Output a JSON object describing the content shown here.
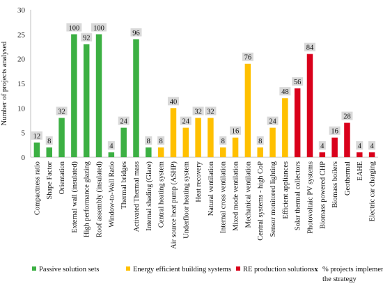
{
  "chart_data": {
    "type": "bar",
    "ylabel": "Number of projects analysed",
    "ylim": [
      0,
      30
    ],
    "yticks": [
      "0",
      "5",
      "10",
      "15",
      "20",
      "25",
      "30"
    ],
    "grid": false,
    "categories": [
      "Compactness ratio",
      "Shape Factor",
      "Orientation",
      "External wall (insulated)",
      "High performance glazing",
      "Roof assembly (insulated)",
      "Window-to-Wall Ratio",
      "Thermal bridges",
      "Activated Thermal mass",
      "Internal shading (Glare)",
      "Central heating system",
      "Air source heat pump (ASHP)",
      "Underfloor heating system",
      "Heat recovery",
      "Natural ventilation",
      "Internal cross ventilation",
      "Mixed mode ventilation",
      "Mechanical ventilation",
      "Central systems - high CoP",
      "Sensor monitored lighting",
      "Efficient appliances",
      "Solar thermal collectors",
      "Photovoltaic PV systems",
      "Biomass powered CHP",
      "Biomass boilers",
      "Geothermal",
      "EAHE",
      "Electric car charging"
    ],
    "values": [
      3,
      2,
      8,
      25,
      23,
      25,
      1,
      6,
      24,
      2,
      2,
      10,
      6,
      8,
      8,
      2,
      4,
      19,
      2,
      6,
      12,
      14,
      21,
      1,
      4,
      7,
      1,
      1
    ],
    "percent_labels": [
      "12",
      "8",
      "32",
      "100",
      "92",
      "100",
      "4",
      "24",
      "96",
      "8",
      "8",
      "40",
      "24",
      "32",
      "32",
      "8",
      "16",
      "76",
      "8",
      "24",
      "48",
      "56",
      "84",
      "4",
      "16",
      "28",
      "4",
      "4"
    ],
    "groups": [
      0,
      0,
      0,
      0,
      0,
      0,
      0,
      0,
      0,
      0,
      1,
      1,
      1,
      1,
      1,
      1,
      1,
      1,
      1,
      1,
      1,
      2,
      2,
      2,
      2,
      2,
      2,
      2
    ],
    "group_colors": [
      "#3cb043",
      "#ffc000",
      "#d9001b"
    ],
    "legend": {
      "placement": "bottom",
      "items": [
        {
          "label": "Passive solution sets",
          "color": "#3cb043"
        },
        {
          "label": "Energy efficient building systems",
          "color": "#ffc000"
        },
        {
          "label": "RE production solutions",
          "color": "#d9001b"
        },
        {
          "label": "% projects implementing the strategy",
          "marker": "x"
        }
      ]
    }
  }
}
